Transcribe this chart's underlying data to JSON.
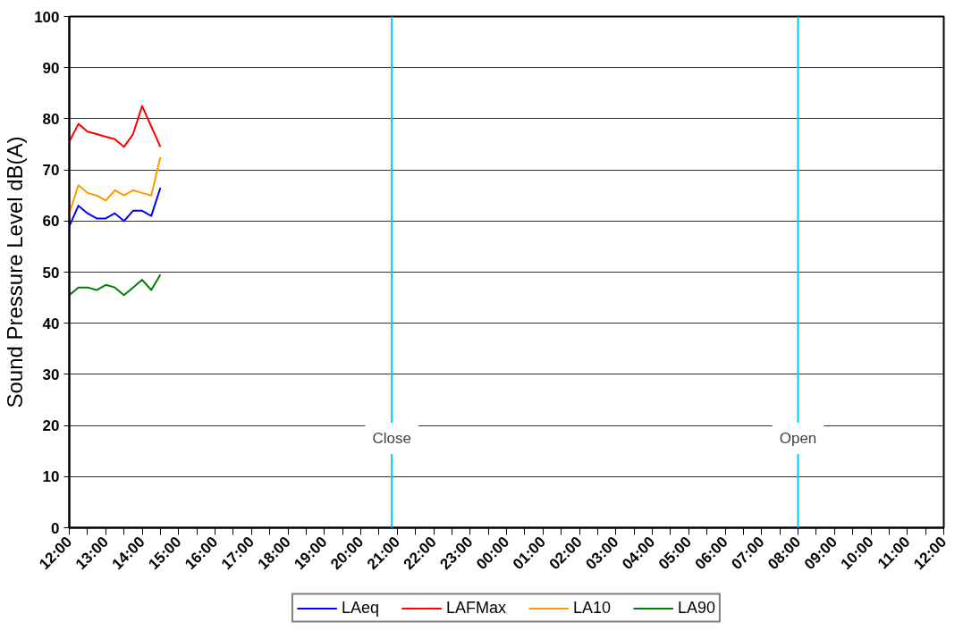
{
  "chart_data": {
    "type": "line",
    "ylabel": "Sound Pressure Level dB(A)",
    "x": [
      "2000-01-01T12:00",
      "2000-01-01T12:15",
      "2000-01-01T12:30",
      "2000-01-01T12:45",
      "2000-01-01T13:00",
      "2000-01-01T13:15",
      "2000-01-01T13:30",
      "2000-01-01T13:45",
      "2000-01-01T14:00",
      "2000-01-01T14:15",
      "2000-01-01T14:30"
    ],
    "series": [
      {
        "name": "LAeq",
        "color": "#0000ff",
        "values": [
          59,
          63,
          61.5,
          60.5,
          60.5,
          61.5,
          60,
          62,
          62,
          61,
          66.5
        ]
      },
      {
        "name": "LAFMax",
        "color": "#ff0000",
        "values": [
          75.5,
          79,
          77.5,
          77,
          76.5,
          76,
          74.5,
          77,
          82.5,
          78.5,
          74.5
        ]
      },
      {
        "name": "LA10",
        "color": "#ff9900",
        "values": [
          61.5,
          67,
          65.5,
          65,
          64,
          66,
          65,
          66,
          65.5,
          65,
          72.5
        ]
      },
      {
        "name": "LA90",
        "color": "#008000",
        "values": [
          45.5,
          47,
          47,
          46.5,
          47.5,
          47,
          45.5,
          47,
          48.5,
          46.5,
          49.5
        ]
      }
    ],
    "xlim": [
      "2000-01-01T12:00",
      "2000-01-02T12:00"
    ],
    "xticks": [
      {
        "value": "2000-01-01T12:00",
        "label": "12:00"
      },
      {
        "value": "2000-01-01T12:30",
        "label": null
      },
      {
        "value": "2000-01-01T13:00",
        "label": "13:00"
      },
      {
        "value": "2000-01-01T13:30",
        "label": null
      },
      {
        "value": "2000-01-01T14:00",
        "label": "14:00"
      },
      {
        "value": "2000-01-01T14:30",
        "label": null
      },
      {
        "value": "2000-01-01T15:00",
        "label": "15:00"
      },
      {
        "value": "2000-01-01T15:30",
        "label": null
      },
      {
        "value": "2000-01-01T16:00",
        "label": "16:00"
      },
      {
        "value": "2000-01-01T16:30",
        "label": null
      },
      {
        "value": "2000-01-01T17:00",
        "label": "17:00"
      },
      {
        "value": "2000-01-01T17:30",
        "label": null
      },
      {
        "value": "2000-01-01T18:00",
        "label": "18:00"
      },
      {
        "value": "2000-01-01T18:30",
        "label": null
      },
      {
        "value": "2000-01-01T19:00",
        "label": "19:00"
      },
      {
        "value": "2000-01-01T19:30",
        "label": null
      },
      {
        "value": "2000-01-01T20:00",
        "label": "20:00"
      },
      {
        "value": "2000-01-01T20:30",
        "label": null
      },
      {
        "value": "2000-01-01T21:00",
        "label": "21:00"
      },
      {
        "value": "2000-01-01T21:30",
        "label": null
      },
      {
        "value": "2000-01-01T22:00",
        "label": "22:00"
      },
      {
        "value": "2000-01-01T22:30",
        "label": null
      },
      {
        "value": "2000-01-01T23:00",
        "label": "23:00"
      },
      {
        "value": "2000-01-01T23:30",
        "label": null
      },
      {
        "value": "2000-01-02T00:00",
        "label": "00:00"
      },
      {
        "value": "2000-01-02T00:30",
        "label": null
      },
      {
        "value": "2000-01-02T01:00",
        "label": "01:00"
      },
      {
        "value": "2000-01-02T01:30",
        "label": null
      },
      {
        "value": "2000-01-02T02:00",
        "label": "02:00"
      },
      {
        "value": "2000-01-02T02:30",
        "label": null
      },
      {
        "value": "2000-01-02T03:00",
        "label": "03:00"
      },
      {
        "value": "2000-01-02T03:30",
        "label": null
      },
      {
        "value": "2000-01-02T04:00",
        "label": "04:00"
      },
      {
        "value": "2000-01-02T04:30",
        "label": null
      },
      {
        "value": "2000-01-02T05:00",
        "label": "05:00"
      },
      {
        "value": "2000-01-02T05:30",
        "label": null
      },
      {
        "value": "2000-01-02T06:00",
        "label": "06:00"
      },
      {
        "value": "2000-01-02T06:30",
        "label": null
      },
      {
        "value": "2000-01-02T07:00",
        "label": "07:00"
      },
      {
        "value": "2000-01-02T07:30",
        "label": null
      },
      {
        "value": "2000-01-02T08:00",
        "label": "08:00"
      },
      {
        "value": "2000-01-02T08:30",
        "label": null
      },
      {
        "value": "2000-01-02T09:00",
        "label": "09:00"
      },
      {
        "value": "2000-01-02T09:30",
        "label": null
      },
      {
        "value": "2000-01-02T10:00",
        "label": "10:00"
      },
      {
        "value": "2000-01-02T10:30",
        "label": null
      },
      {
        "value": "2000-01-02T11:00",
        "label": "11:00"
      },
      {
        "value": "2000-01-02T11:30",
        "label": null
      },
      {
        "value": "2000-01-02T12:00",
        "label": "12:00"
      }
    ],
    "ylim": [
      0,
      100
    ],
    "yticks": [
      0,
      10,
      20,
      30,
      40,
      50,
      60,
      70,
      80,
      90,
      100
    ],
    "ref_lines": [
      {
        "axis": "x",
        "value": "2000-01-01T20:51",
        "label": "Close",
        "color": "#00ccff"
      },
      {
        "axis": "x",
        "value": "2000-01-02T08:00",
        "label": "Open",
        "color": "#00ccff"
      }
    ],
    "grid": "y",
    "legend": "bottom",
    "marker": "none",
    "line_style": "solid"
  }
}
